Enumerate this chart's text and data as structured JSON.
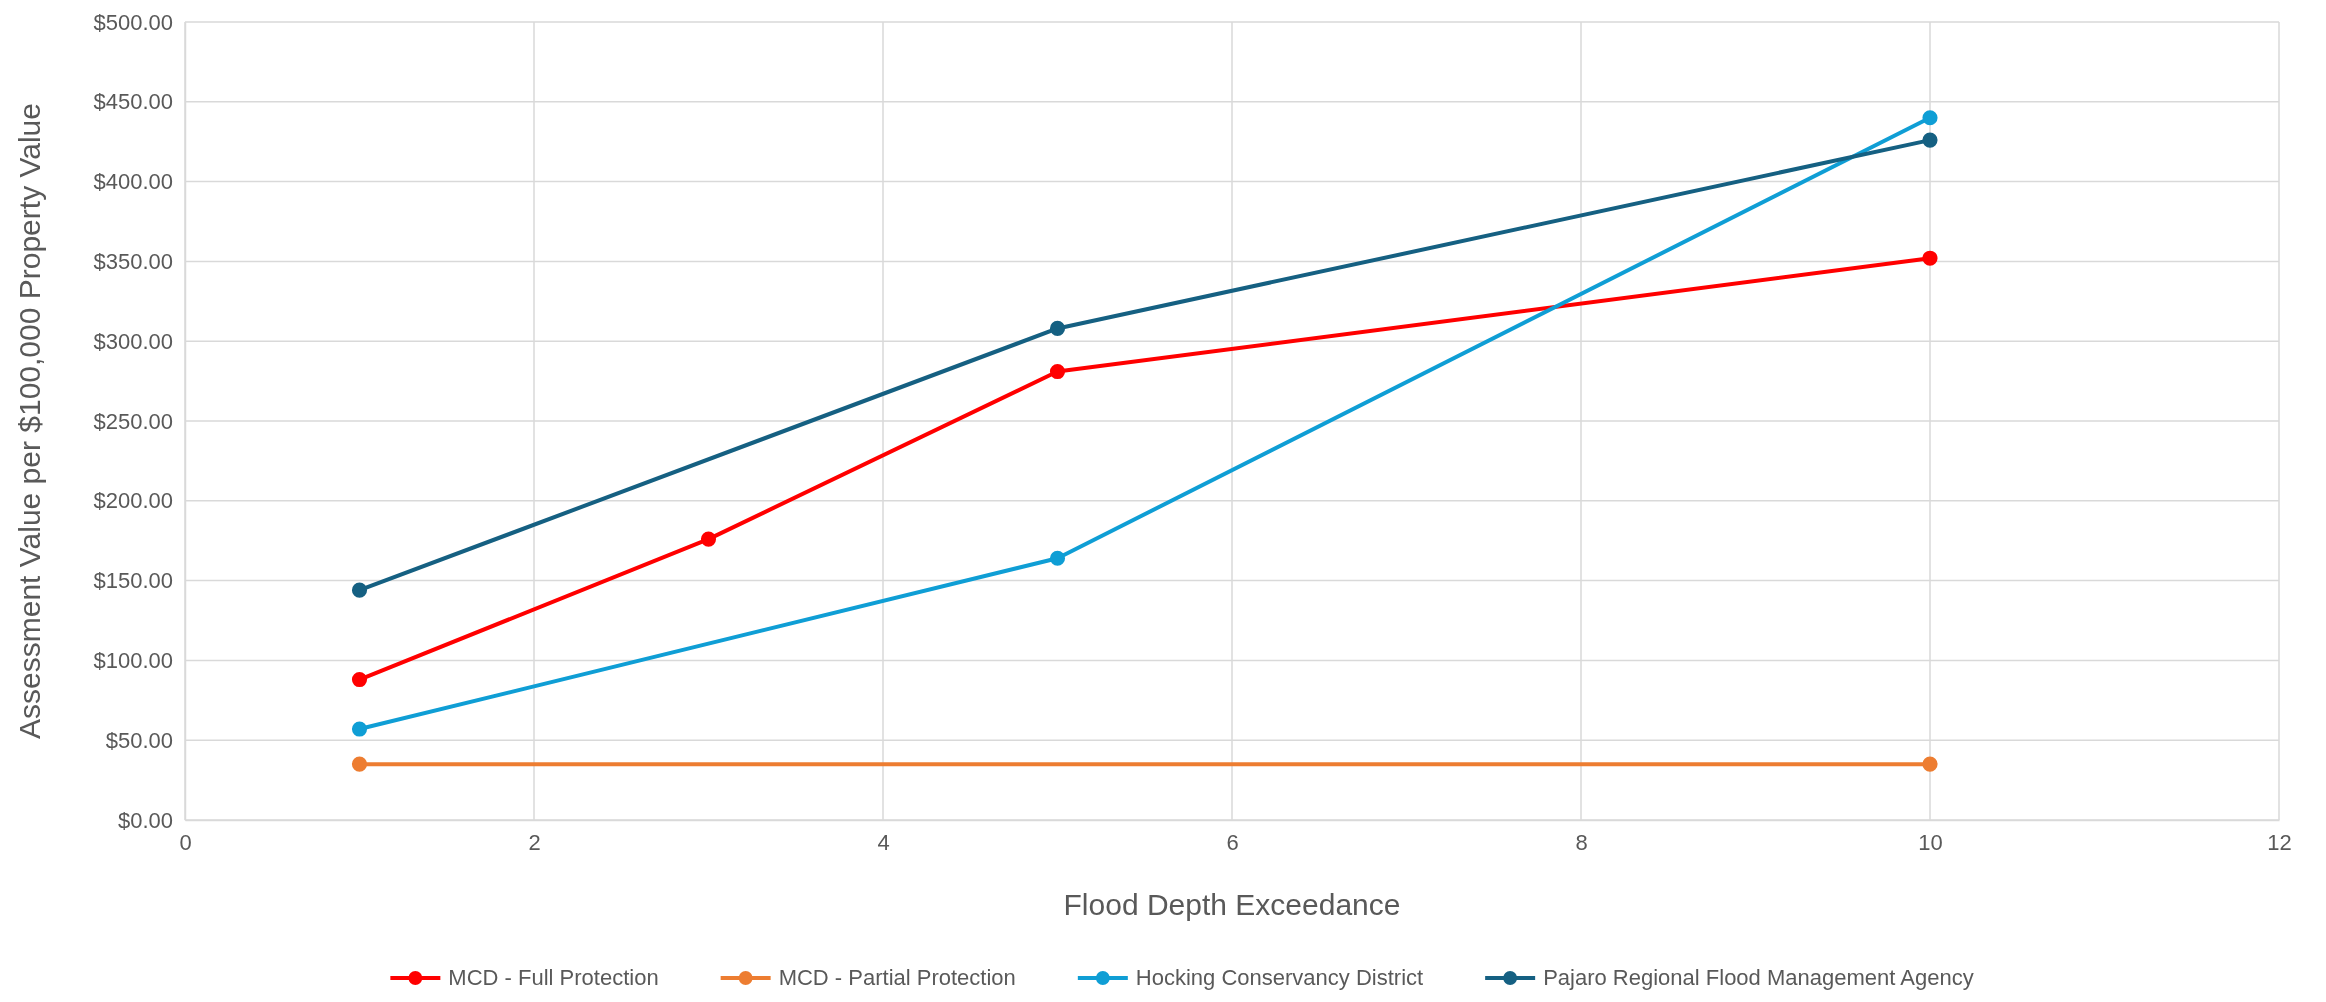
{
  "chart_data": {
    "type": "line",
    "xlabel": "Flood Depth Exceedance",
    "ylabel": "Assessment Value per $100,000 Property Value",
    "xlim": [
      0,
      12
    ],
    "xticks": [
      0,
      2,
      4,
      6,
      8,
      10,
      12
    ],
    "ylim": [
      0,
      500
    ],
    "yticks": [
      {
        "value": 0,
        "label": "$0.00"
      },
      {
        "value": 50,
        "label": "$50.00"
      },
      {
        "value": 100,
        "label": "$100.00"
      },
      {
        "value": 150,
        "label": "$150.00"
      },
      {
        "value": 200,
        "label": "$200.00"
      },
      {
        "value": 250,
        "label": "$250.00"
      },
      {
        "value": 300,
        "label": "$300.00"
      },
      {
        "value": 350,
        "label": "$350.00"
      },
      {
        "value": 400,
        "label": "$400.00"
      },
      {
        "value": 450,
        "label": "$450.00"
      },
      {
        "value": 500,
        "label": "$500.00"
      }
    ],
    "grid": true,
    "legend": "bottom",
    "marker": "circle",
    "line_style": "solid",
    "series": [
      {
        "name": "MCD - Full Protection",
        "color": "#ff0000",
        "x": [
          1,
          3,
          5,
          10
        ],
        "values": [
          88,
          176,
          281,
          352
        ]
      },
      {
        "name": "MCD - Partial Protection",
        "color": "#ed7d31",
        "x": [
          1,
          10
        ],
        "values": [
          35,
          35
        ]
      },
      {
        "name": "Hocking Conservancy District",
        "color": "#0f9ed5",
        "x": [
          1,
          5,
          10
        ],
        "values": [
          57,
          164,
          440
        ]
      },
      {
        "name": "Pajaro Regional Flood Management Agency",
        "color": "#156082",
        "x": [
          1,
          5,
          10
        ],
        "values": [
          144,
          308,
          426
        ]
      }
    ]
  }
}
